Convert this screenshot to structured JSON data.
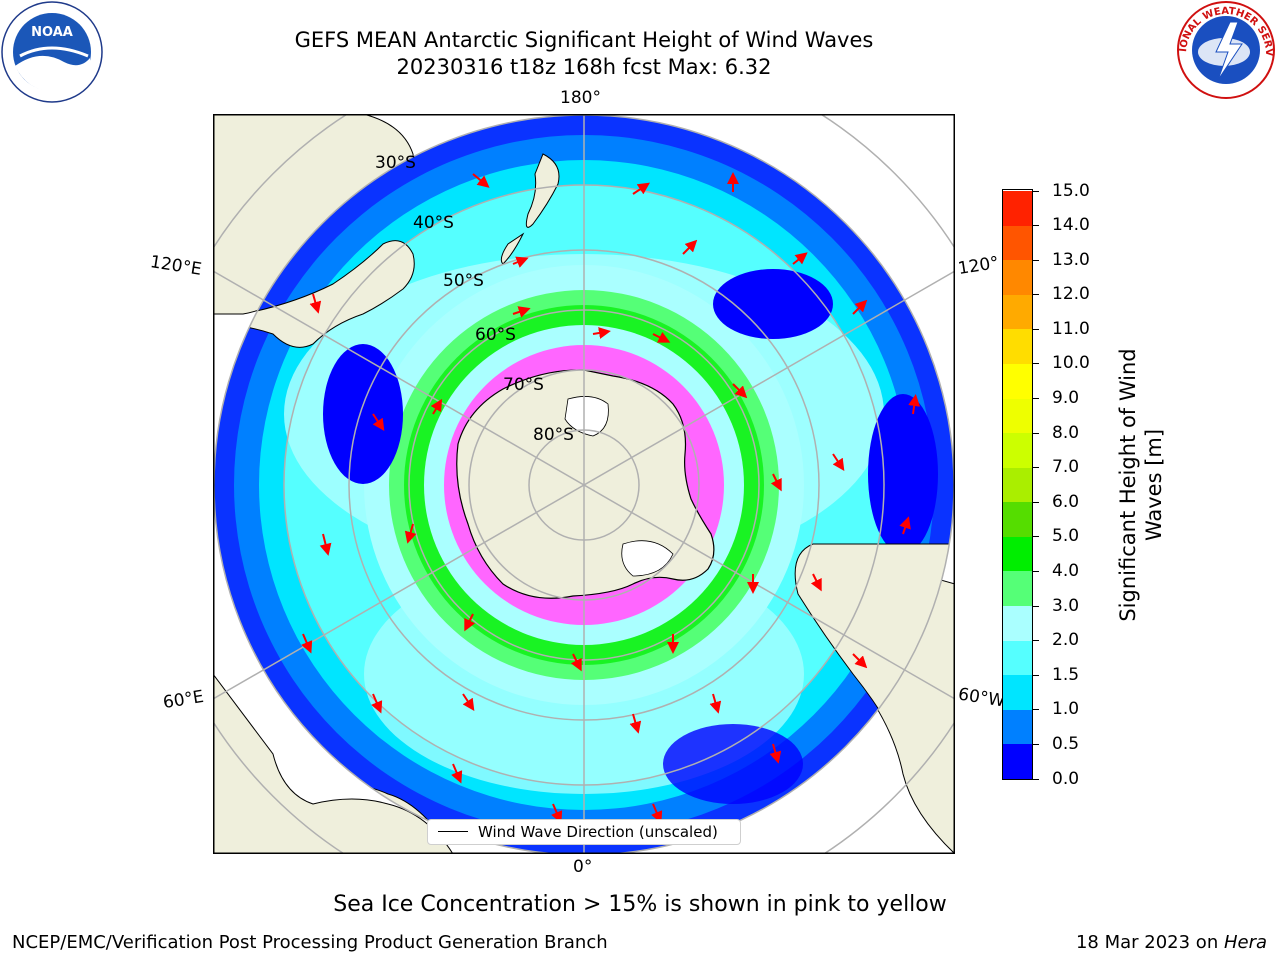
{
  "header": {
    "title_line1": "GEFS MEAN Antarctic Significant Height of Wind Waves",
    "title_line2": "20230316 t18z 168h fcst   Max: 6.32"
  },
  "map": {
    "longitude_labels": {
      "top": "180°",
      "bottom": "0°",
      "upper_left": "120°E",
      "upper_right": "120°",
      "lower_left": "60°E",
      "lower_right": "60°W"
    },
    "latitude_labels": [
      "30°S",
      "40°S",
      "50°S",
      "60°S",
      "70°S",
      "80°S"
    ],
    "legend_label": "Wind Wave Direction (unscaled)",
    "colors": {
      "land": "#efefdc",
      "coastline": "#000000",
      "grid": "#b0b0b0",
      "arrows": "#ff0000",
      "sea_ice": "#ff66ff"
    }
  },
  "colorbar": {
    "label_line1": "Significant Height of Wind",
    "label_line2": "Waves [m]",
    "ticks": [
      "0.0",
      "0.5",
      "1.0",
      "1.5",
      "2.0",
      "3.0",
      "4.0",
      "5.0",
      "6.0",
      "7.0",
      "8.0",
      "9.0",
      "10.0",
      "11.0",
      "12.0",
      "13.0",
      "14.0",
      "15.0"
    ],
    "colors": [
      "#0000ff",
      "#0080ff",
      "#00e5ff",
      "#55ffff",
      "#aaffff",
      "#55ff77",
      "#00ee00",
      "#55dd00",
      "#aaee00",
      "#ccff00",
      "#eeff00",
      "#ffff00",
      "#ffdd00",
      "#ffaa00",
      "#ff8800",
      "#ff5500",
      "#ff2200"
    ]
  },
  "note": "Sea Ice Concentration > 15% is shown in pink to yellow",
  "footer": {
    "left": "NCEP/EMC/Verification Post Processing Product Generation Branch",
    "right_prefix": "18 Mar 2023 on ",
    "right_emph": "Hera"
  },
  "logos": {
    "noaa_text": "NOAA",
    "nws_ring_text": "NATIONAL WEATHER SERVICE"
  }
}
